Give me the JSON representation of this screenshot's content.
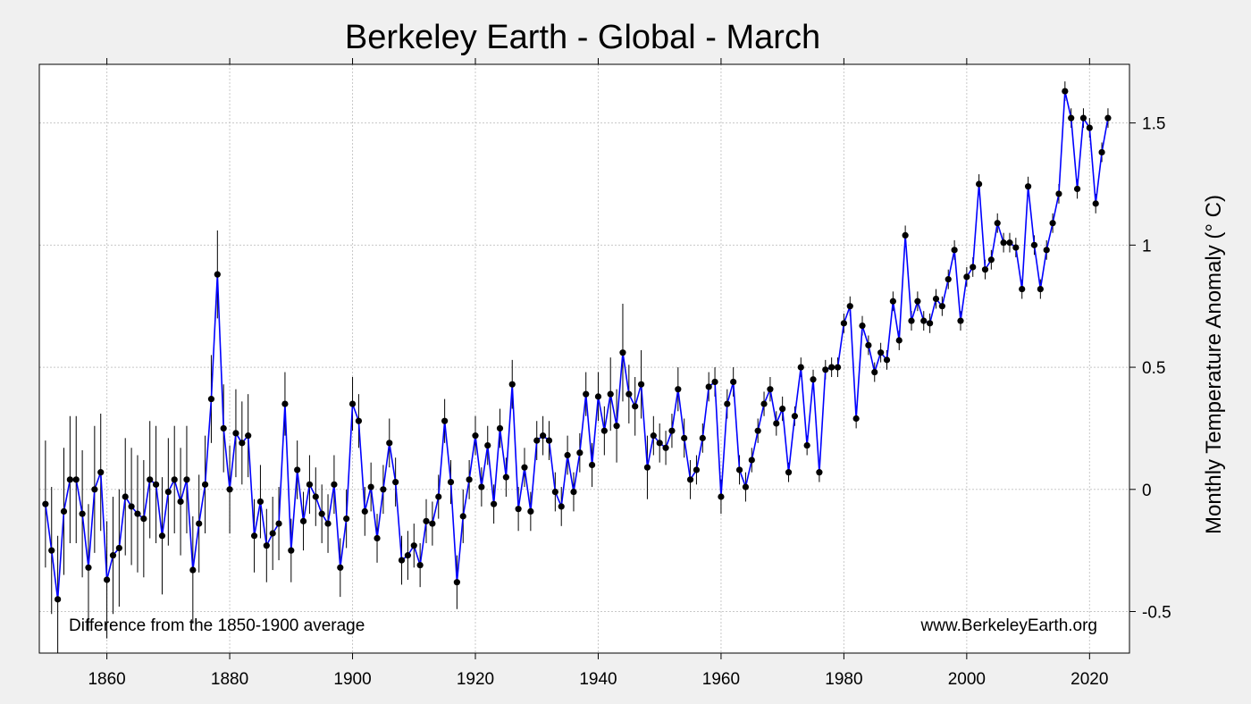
{
  "chart_data": {
    "type": "line",
    "title": "Berkeley Earth - Global - March",
    "xlabel": "",
    "ylabel": "Monthly Temperature Anomaly (° C)",
    "xlim": [
      1849,
      2026.5
    ],
    "ylim": [
      -0.67,
      1.74
    ],
    "x_ticks": [
      1860,
      1880,
      1900,
      1920,
      1940,
      1960,
      1980,
      2000,
      2020
    ],
    "y_ticks": [
      -0.5,
      0,
      0.5,
      1,
      1.5
    ],
    "y_tick_labels": [
      "-0.5",
      "0",
      "0.5",
      "1",
      "1.5"
    ],
    "grid": true,
    "annotations": {
      "left_note": "Difference from the 1850-1900 average",
      "right_note": "www.BerkeleyEarth.org"
    },
    "colors": {
      "line": "#0000ff",
      "points": "#000000",
      "background": "#f0f0f0",
      "plot_area": "#ffffff"
    },
    "x_start_year": 1850,
    "values": [
      -0.06,
      -0.25,
      -0.45,
      -0.09,
      0.04,
      0.04,
      -0.1,
      -0.32,
      0.0,
      0.07,
      -0.37,
      -0.27,
      -0.24,
      -0.03,
      -0.07,
      -0.1,
      -0.12,
      0.04,
      0.02,
      -0.19,
      -0.01,
      0.04,
      -0.05,
      0.04,
      -0.33,
      -0.14,
      0.02,
      0.37,
      0.88,
      0.25,
      0.0,
      0.23,
      0.19,
      0.22,
      -0.19,
      -0.05,
      -0.23,
      -0.18,
      -0.14,
      0.35,
      -0.25,
      0.08,
      -0.13,
      0.02,
      -0.03,
      -0.1,
      -0.14,
      0.02,
      -0.32,
      -0.12,
      0.35,
      0.28,
      -0.09,
      0.01,
      -0.2,
      0.0,
      0.19,
      0.03,
      -0.29,
      -0.27,
      -0.23,
      -0.31,
      -0.13,
      -0.14,
      -0.03,
      0.28,
      0.03,
      -0.38,
      -0.11,
      0.04,
      0.22,
      0.01,
      0.18,
      -0.06,
      0.25,
      0.05,
      0.43,
      -0.08,
      0.09,
      -0.09,
      0.2,
      0.22,
      0.2,
      -0.01,
      -0.07,
      0.14,
      -0.01,
      0.15,
      0.39,
      0.1,
      0.38,
      0.24,
      0.39,
      0.26,
      0.56,
      0.39,
      0.34,
      0.43,
      0.09,
      0.22,
      0.19,
      0.17,
      0.24,
      0.41,
      0.21,
      0.04,
      0.08,
      0.21,
      0.42,
      0.44,
      -0.03,
      0.35,
      0.44,
      0.08,
      0.01,
      0.12,
      0.24,
      0.35,
      0.41,
      0.27,
      0.33,
      0.07,
      0.3,
      0.5,
      0.18,
      0.45,
      0.07,
      0.49,
      0.5,
      0.5,
      0.68,
      0.75,
      0.29,
      0.67,
      0.59,
      0.48,
      0.56,
      0.53,
      0.77,
      0.61,
      1.04,
      0.69,
      0.77,
      0.69,
      0.68,
      0.78,
      0.75,
      0.86,
      0.98,
      0.69,
      0.87,
      0.91,
      1.25,
      0.9,
      0.94,
      1.09,
      1.01,
      1.01,
      0.99,
      0.82,
      1.24,
      1.0,
      0.82,
      0.98,
      1.09,
      1.21,
      1.63,
      1.52,
      1.23,
      1.52,
      1.48,
      1.17,
      1.38,
      1.52
    ],
    "uncertainty": [
      0.26,
      0.26,
      0.26,
      0.26,
      0.26,
      0.26,
      0.26,
      0.26,
      0.26,
      0.24,
      0.24,
      0.24,
      0.24,
      0.24,
      0.24,
      0.24,
      0.24,
      0.24,
      0.24,
      0.24,
      0.22,
      0.22,
      0.22,
      0.22,
      0.22,
      0.2,
      0.2,
      0.18,
      0.18,
      0.18,
      0.18,
      0.18,
      0.17,
      0.17,
      0.15,
      0.15,
      0.15,
      0.15,
      0.15,
      0.13,
      0.13,
      0.12,
      0.12,
      0.12,
      0.12,
      0.12,
      0.12,
      0.12,
      0.12,
      0.12,
      0.11,
      0.11,
      0.1,
      0.1,
      0.1,
      0.1,
      0.1,
      0.1,
      0.1,
      0.1,
      0.09,
      0.09,
      0.09,
      0.09,
      0.09,
      0.09,
      0.09,
      0.11,
      0.11,
      0.08,
      0.08,
      0.08,
      0.08,
      0.08,
      0.08,
      0.08,
      0.1,
      0.09,
      0.08,
      0.08,
      0.08,
      0.08,
      0.08,
      0.08,
      0.08,
      0.08,
      0.08,
      0.08,
      0.09,
      0.09,
      0.1,
      0.1,
      0.15,
      0.15,
      0.2,
      0.12,
      0.12,
      0.14,
      0.13,
      0.08,
      0.08,
      0.07,
      0.07,
      0.09,
      0.08,
      0.08,
      0.06,
      0.06,
      0.06,
      0.06,
      0.07,
      0.06,
      0.06,
      0.06,
      0.06,
      0.05,
      0.05,
      0.05,
      0.05,
      0.05,
      0.05,
      0.04,
      0.04,
      0.04,
      0.04,
      0.04,
      0.04,
      0.04,
      0.04,
      0.04,
      0.04,
      0.04,
      0.04,
      0.04,
      0.04,
      0.04,
      0.04,
      0.04,
      0.04,
      0.04,
      0.04,
      0.04,
      0.04,
      0.04,
      0.04,
      0.04,
      0.04,
      0.04,
      0.04,
      0.04,
      0.04,
      0.04,
      0.04,
      0.04,
      0.04,
      0.04,
      0.04,
      0.04,
      0.04,
      0.04,
      0.04,
      0.04,
      0.04,
      0.04,
      0.04,
      0.04,
      0.04,
      0.04,
      0.04,
      0.04,
      0.04,
      0.04,
      0.04,
      0.04,
      0.04,
      0.04,
      0.04,
      0.04,
      0.04
    ]
  }
}
